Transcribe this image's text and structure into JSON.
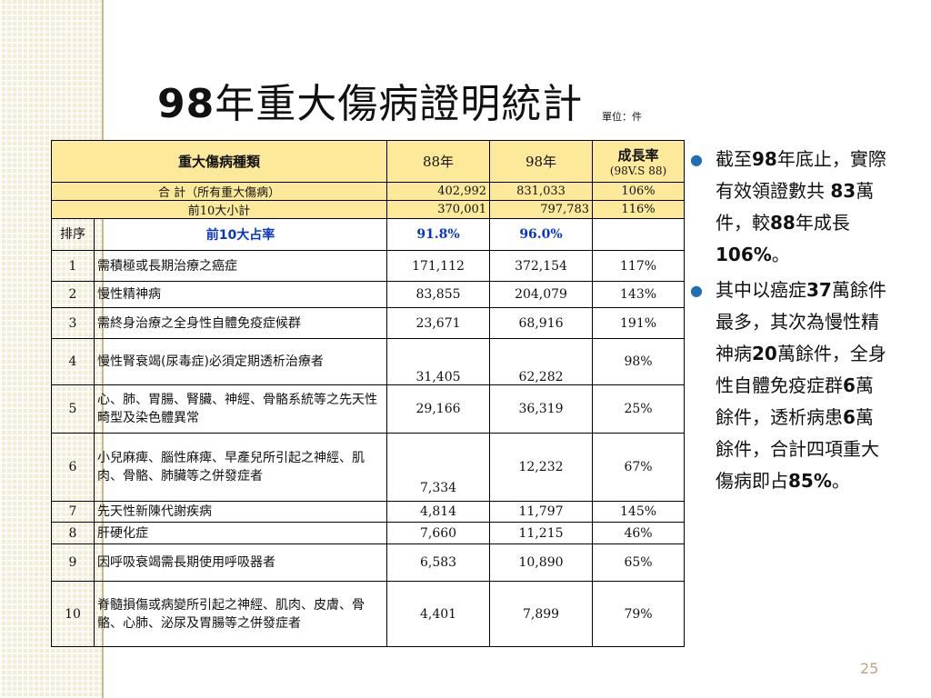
{
  "title": {
    "num": "98",
    "text": "年重大傷病證明統計"
  },
  "unit_label": "單位：件",
  "table": {
    "header": {
      "category": "重大傷病種類",
      "col88": "88年",
      "col98": "98年",
      "growth": "成長率",
      "growth_sub": "(98V.S 88)"
    },
    "total": {
      "label": "合  計（所有重大傷病）",
      "v88": "402,992",
      "v98": "831,033",
      "growth": "106%"
    },
    "top10": {
      "label": "前10大小計",
      "v88": "370,001",
      "v98": "797,783",
      "growth": "116%"
    },
    "ratio": {
      "rank_label": "排序",
      "label": "前10大占率",
      "v88": "91.8%",
      "v98": "96.0%"
    },
    "rows": [
      {
        "rank": "1",
        "name": "需積極或長期治療之癌症",
        "v88": "171,112",
        "v98": "372,154",
        "growth": "117%"
      },
      {
        "rank": "2",
        "name": "慢性精神病",
        "v88": "83,855",
        "v98": "204,079",
        "growth": "143%"
      },
      {
        "rank": "3",
        "name": "需終身治療之全身性自體免疫症候群",
        "v88": "23,671",
        "v98": "68,916",
        "growth": "191%"
      },
      {
        "rank": "4",
        "name": "慢性腎衰竭(尿毒症)必須定期透析治療者",
        "v88": "31,405",
        "v98": "62,282",
        "growth": "98%"
      },
      {
        "rank": "5",
        "name": "心、肺、胃腸、腎臟、神經、骨骼系統等之先天性畸型及染色體異常",
        "v88": "29,166",
        "v98": "36,319",
        "growth": "25%"
      },
      {
        "rank": "6",
        "name": "小兒麻痺、腦性麻痺、早產兒所引起之神經、肌肉、骨骼、肺臟等之併發症者",
        "v88": "7,334",
        "v98": "12,232",
        "growth": "67%"
      },
      {
        "rank": "7",
        "name": "先天性新陳代謝疾病",
        "v88": "4,814",
        "v98": "11,797",
        "growth": "145%"
      },
      {
        "rank": "8",
        "name": "肝硬化症",
        "v88": "7,660",
        "v98": "11,215",
        "growth": "46%"
      },
      {
        "rank": "9",
        "name": "因呼吸衰竭需長期使用呼吸器者",
        "v88": "6,583",
        "v98": "10,890",
        "growth": "65%"
      },
      {
        "rank": "10",
        "name": "脊髓損傷或病變所引起之神經、肌肉、皮膚、骨骼、心肺、泌尿及胃腸等之併發症者",
        "v88": "4,401",
        "v98": "7,899",
        "growth": "79%"
      }
    ]
  },
  "bullets": {
    "b1": {
      "p1": "截至",
      "n1": "98",
      "p2": "年底止，實際有效領證數共 ",
      "n2": "83",
      "p3": "萬件，較",
      "n3": "88",
      "p4": "年成長",
      "n4": "106%",
      "p5": "。"
    },
    "b2": {
      "p1": "其中以癌症",
      "n1": "37",
      "p2": "萬餘件最多，其次為慢性精神病",
      "n2": "20",
      "p3": "萬餘件，全身性自體免疫症群",
      "n3": "6",
      "p4": "萬餘件，透析病患",
      "n4": "6",
      "p5": "萬餘件，合計四項重大傷病即占",
      "n5": "85%",
      "p6": "。"
    }
  },
  "page_number": "25",
  "colors": {
    "header_bg": "#fde99a",
    "ratio_blue": "#0a36c8",
    "bullet_dot": "#1f6fb5",
    "stripe": "#f3ecd6"
  }
}
